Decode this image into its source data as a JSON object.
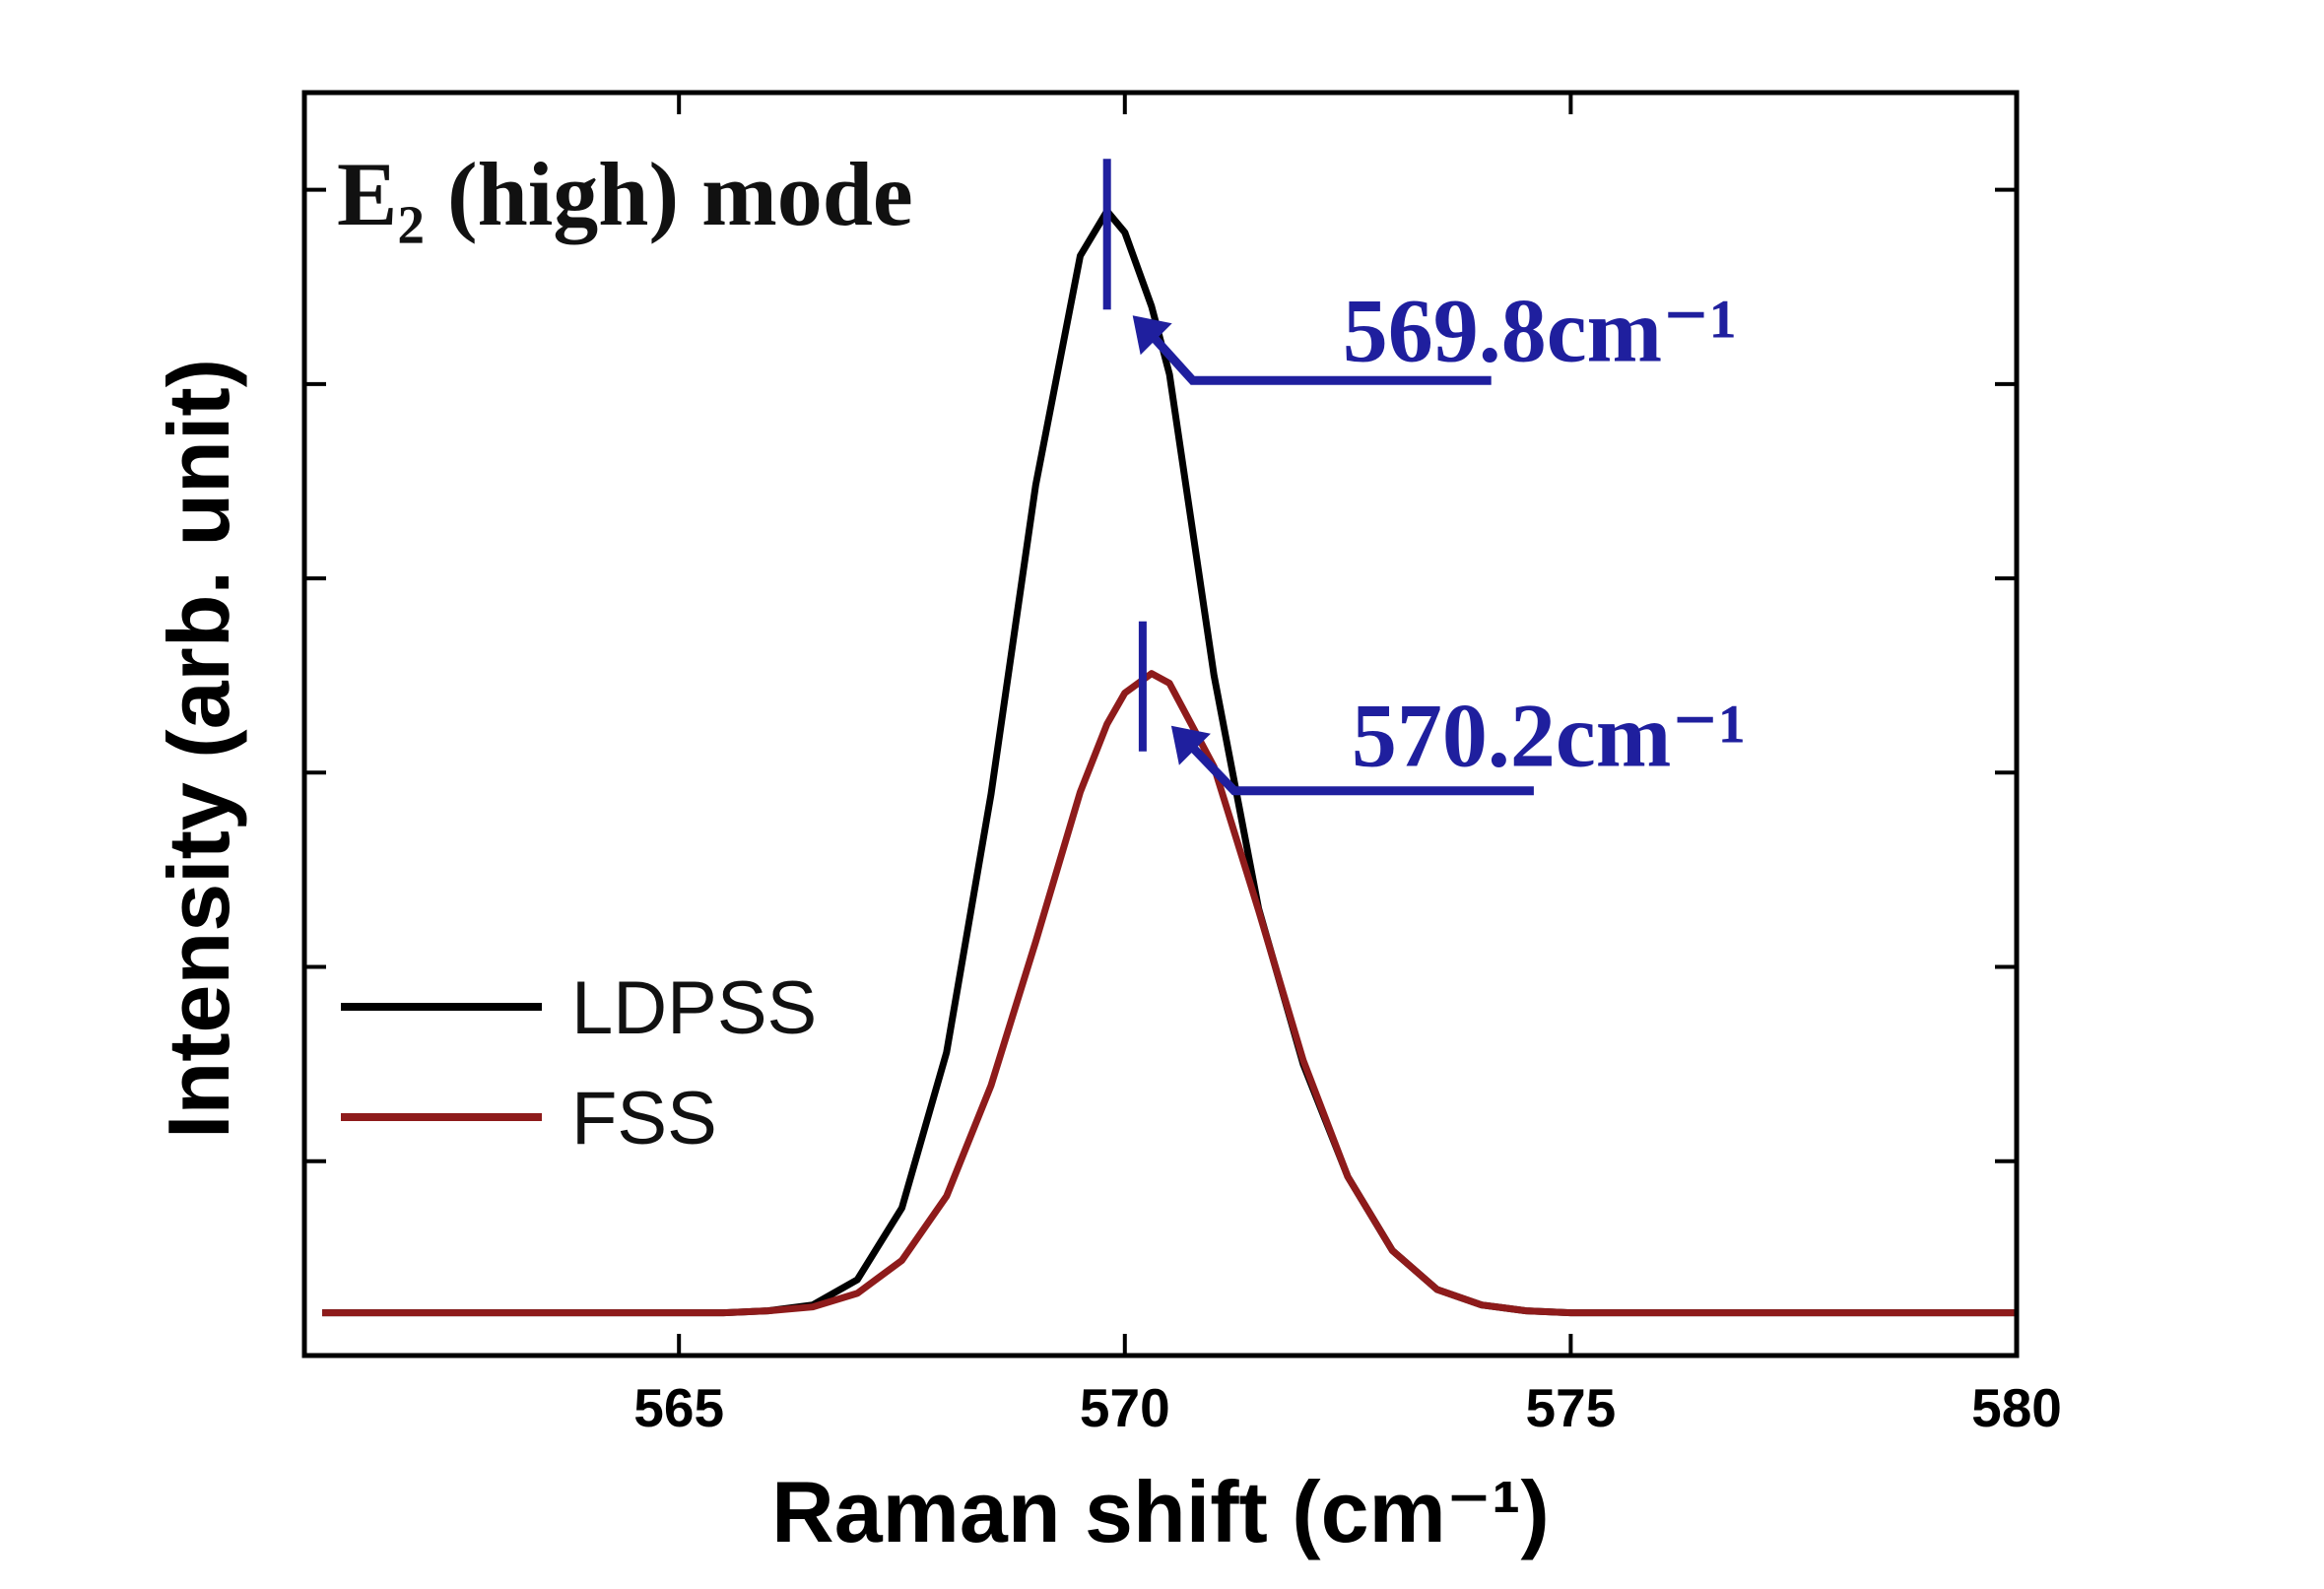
{
  "chart_data": {
    "type": "line",
    "xlabel": "Raman shift (cm⁻¹)",
    "ylabel": "Intensity (arb. unit)",
    "x": [
      561,
      562,
      563,
      564,
      565,
      565.5,
      566,
      566.5,
      567,
      567.5,
      568,
      568.5,
      569,
      569.5,
      569.8,
      570,
      570.3,
      570.5,
      571,
      571.5,
      572,
      572.5,
      573,
      573.5,
      574,
      574.5,
      575,
      576,
      577,
      578,
      579,
      580
    ],
    "series": [
      {
        "name": "LDPSS",
        "color": "#000000",
        "values": [
          0.22,
          0.22,
          0.22,
          0.22,
          0.22,
          0.22,
          0.23,
          0.26,
          0.39,
          0.76,
          1.56,
          2.89,
          4.48,
          5.66,
          5.89,
          5.78,
          5.4,
          5.05,
          3.5,
          2.3,
          1.5,
          0.92,
          0.54,
          0.34,
          0.26,
          0.23,
          0.22,
          0.22,
          0.22,
          0.22,
          0.22,
          0.22
        ]
      },
      {
        "name": "FSS",
        "color": "#8e1b1b",
        "values": [
          0.22,
          0.22,
          0.22,
          0.22,
          0.22,
          0.22,
          0.23,
          0.25,
          0.32,
          0.49,
          0.82,
          1.39,
          2.13,
          2.9,
          3.25,
          3.41,
          3.51,
          3.46,
          3.03,
          2.29,
          1.52,
          0.92,
          0.54,
          0.34,
          0.26,
          0.23,
          0.22,
          0.22,
          0.22,
          0.22,
          0.22,
          0.22
        ]
      }
    ],
    "xlim": [
      560.8,
      580
    ],
    "xticks": [
      565,
      570,
      575,
      580
    ],
    "ylim": [
      0,
      6.5
    ],
    "yticks": [
      1,
      2,
      3,
      4,
      5,
      6
    ],
    "legend": "lower left",
    "annotations": [
      {
        "text": "E₂ (high) mode"
      },
      {
        "text": "569.8cm⁻¹",
        "x": 569.8,
        "color": "#1f1f9e"
      },
      {
        "text": "570.2cm⁻¹",
        "x": 570.2,
        "color": "#1f1f9e"
      }
    ]
  }
}
